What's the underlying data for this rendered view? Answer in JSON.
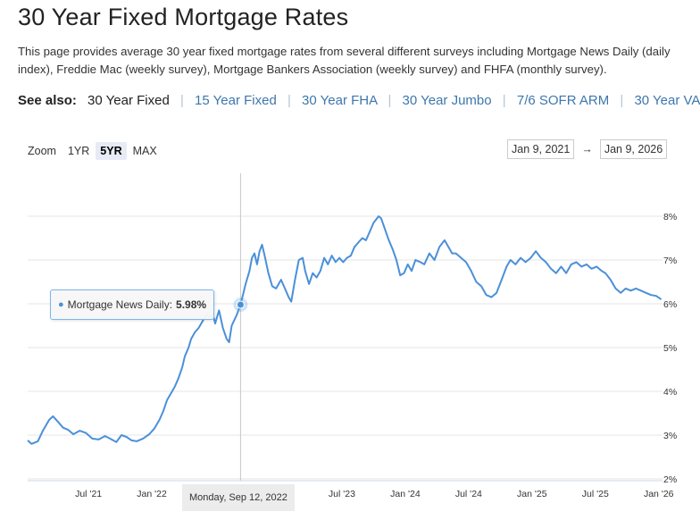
{
  "page": {
    "title": "30 Year Fixed Mortgage Rates",
    "intro": "This page provides average 30 year fixed mortgage rates from several different surveys including Mortgage News Daily (daily index), Freddie Mac (weekly survey), Mortgage Bankers Association (weekly survey) and FHFA (monthly survey)."
  },
  "see_also": {
    "label": "See also:",
    "items": [
      {
        "text": "30 Year Fixed",
        "current": true
      },
      {
        "text": "15 Year Fixed",
        "current": false
      },
      {
        "text": "30 Year FHA",
        "current": false
      },
      {
        "text": "30 Year Jumbo",
        "current": false
      },
      {
        "text": "7/6 SOFR ARM",
        "current": false
      },
      {
        "text": "30 Year VA",
        "current": false
      }
    ]
  },
  "zoom": {
    "label": "Zoom",
    "buttons": [
      {
        "text": "1YR",
        "active": false
      },
      {
        "text": "5YR",
        "active": true
      },
      {
        "text": "MAX",
        "active": false
      }
    ]
  },
  "range": {
    "from": "Jan 9, 2021",
    "arrow": "→",
    "to": "Jan 9, 2026"
  },
  "tooltip": {
    "series_label": "Mortgage News Daily:",
    "value": "5.98%",
    "date_label": "Monday, Sep 12, 2022"
  },
  "chart_data": {
    "type": "line",
    "series": [
      {
        "name": "Mortgage News Daily",
        "color": "#4a90d9",
        "points": [
          [
            2021.02,
            2.88
          ],
          [
            2021.05,
            2.8
          ],
          [
            2021.1,
            2.86
          ],
          [
            2021.14,
            3.1
          ],
          [
            2021.19,
            3.35
          ],
          [
            2021.22,
            3.43
          ],
          [
            2021.26,
            3.3
          ],
          [
            2021.3,
            3.17
          ],
          [
            2021.34,
            3.12
          ],
          [
            2021.38,
            3.02
          ],
          [
            2021.43,
            3.1
          ],
          [
            2021.48,
            3.05
          ],
          [
            2021.53,
            2.92
          ],
          [
            2021.58,
            2.9
          ],
          [
            2021.63,
            2.98
          ],
          [
            2021.67,
            2.92
          ],
          [
            2021.72,
            2.84
          ],
          [
            2021.76,
            3.0
          ],
          [
            2021.8,
            2.96
          ],
          [
            2021.84,
            2.88
          ],
          [
            2021.88,
            2.86
          ],
          [
            2021.93,
            2.92
          ],
          [
            2021.98,
            3.02
          ],
          [
            2022.02,
            3.15
          ],
          [
            2022.06,
            3.35
          ],
          [
            2022.09,
            3.55
          ],
          [
            2022.12,
            3.8
          ],
          [
            2022.15,
            3.95
          ],
          [
            2022.18,
            4.1
          ],
          [
            2022.21,
            4.3
          ],
          [
            2022.24,
            4.55
          ],
          [
            2022.26,
            4.8
          ],
          [
            2022.29,
            5.0
          ],
          [
            2022.31,
            5.2
          ],
          [
            2022.34,
            5.35
          ],
          [
            2022.37,
            5.45
          ],
          [
            2022.4,
            5.6
          ],
          [
            2022.43,
            5.75
          ],
          [
            2022.46,
            5.7
          ],
          [
            2022.48,
            5.78
          ],
          [
            2022.5,
            5.55
          ],
          [
            2022.53,
            5.85
          ],
          [
            2022.56,
            5.45
          ],
          [
            2022.59,
            5.2
          ],
          [
            2022.61,
            5.12
          ],
          [
            2022.63,
            5.5
          ],
          [
            2022.67,
            5.75
          ],
          [
            2022.7,
            5.98
          ],
          [
            2022.74,
            6.45
          ],
          [
            2022.77,
            6.75
          ],
          [
            2022.79,
            7.05
          ],
          [
            2022.81,
            7.15
          ],
          [
            2022.83,
            6.9
          ],
          [
            2022.85,
            7.2
          ],
          [
            2022.87,
            7.35
          ],
          [
            2022.89,
            7.1
          ],
          [
            2022.92,
            6.7
          ],
          [
            2022.95,
            6.4
          ],
          [
            2022.98,
            6.35
          ],
          [
            2023.02,
            6.55
          ],
          [
            2023.05,
            6.35
          ],
          [
            2023.08,
            6.15
          ],
          [
            2023.1,
            6.05
          ],
          [
            2023.13,
            6.55
          ],
          [
            2023.16,
            7.0
          ],
          [
            2023.19,
            7.05
          ],
          [
            2023.21,
            6.75
          ],
          [
            2023.24,
            6.45
          ],
          [
            2023.27,
            6.7
          ],
          [
            2023.3,
            6.6
          ],
          [
            2023.33,
            6.75
          ],
          [
            2023.36,
            7.05
          ],
          [
            2023.39,
            6.9
          ],
          [
            2023.42,
            7.1
          ],
          [
            2023.45,
            6.95
          ],
          [
            2023.48,
            7.05
          ],
          [
            2023.51,
            6.95
          ],
          [
            2023.54,
            7.05
          ],
          [
            2023.57,
            7.1
          ],
          [
            2023.6,
            7.3
          ],
          [
            2023.63,
            7.4
          ],
          [
            2023.66,
            7.5
          ],
          [
            2023.69,
            7.45
          ],
          [
            2023.72,
            7.65
          ],
          [
            2023.75,
            7.85
          ],
          [
            2023.79,
            8.0
          ],
          [
            2023.81,
            7.95
          ],
          [
            2023.84,
            7.7
          ],
          [
            2023.87,
            7.45
          ],
          [
            2023.9,
            7.25
          ],
          [
            2023.93,
            7.0
          ],
          [
            2023.96,
            6.65
          ],
          [
            2023.99,
            6.7
          ],
          [
            2024.02,
            6.9
          ],
          [
            2024.05,
            6.75
          ],
          [
            2024.08,
            7.0
          ],
          [
            2024.12,
            6.95
          ],
          [
            2024.15,
            6.9
          ],
          [
            2024.19,
            7.15
          ],
          [
            2024.23,
            7.0
          ],
          [
            2024.27,
            7.3
          ],
          [
            2024.31,
            7.45
          ],
          [
            2024.34,
            7.3
          ],
          [
            2024.37,
            7.15
          ],
          [
            2024.4,
            7.15
          ],
          [
            2024.44,
            7.05
          ],
          [
            2024.48,
            6.95
          ],
          [
            2024.52,
            6.75
          ],
          [
            2024.56,
            6.5
          ],
          [
            2024.6,
            6.4
          ],
          [
            2024.64,
            6.2
          ],
          [
            2024.68,
            6.15
          ],
          [
            2024.72,
            6.25
          ],
          [
            2024.76,
            6.55
          ],
          [
            2024.8,
            6.85
          ],
          [
            2024.83,
            7.0
          ],
          [
            2024.87,
            6.9
          ],
          [
            2024.91,
            7.05
          ],
          [
            2024.95,
            6.95
          ],
          [
            2024.99,
            7.05
          ],
          [
            2025.03,
            7.2
          ],
          [
            2025.07,
            7.05
          ],
          [
            2025.11,
            6.95
          ],
          [
            2025.15,
            6.8
          ],
          [
            2025.19,
            6.7
          ],
          [
            2025.23,
            6.85
          ],
          [
            2025.27,
            6.7
          ],
          [
            2025.31,
            6.9
          ],
          [
            2025.35,
            6.95
          ],
          [
            2025.39,
            6.85
          ],
          [
            2025.43,
            6.9
          ],
          [
            2025.47,
            6.8
          ],
          [
            2025.51,
            6.85
          ],
          [
            2025.55,
            6.75
          ],
          [
            2025.58,
            6.7
          ],
          [
            2025.62,
            6.55
          ],
          [
            2025.66,
            6.35
          ],
          [
            2025.7,
            6.25
          ],
          [
            2025.74,
            6.35
          ],
          [
            2025.78,
            6.3
          ],
          [
            2025.82,
            6.35
          ],
          [
            2025.86,
            6.3
          ],
          [
            2025.9,
            6.25
          ],
          [
            2025.94,
            6.2
          ],
          [
            2025.98,
            6.18
          ],
          [
            2026.02,
            6.1
          ]
        ]
      }
    ],
    "highlight": {
      "x": 2022.7,
      "y": 5.98
    },
    "x_ticks": [
      {
        "value": 2021.5,
        "label": "Jul '21"
      },
      {
        "value": 2022.0,
        "label": "Jan '22"
      },
      {
        "value": 2023.5,
        "label": "Jul '23"
      },
      {
        "value": 2024.0,
        "label": "Jan '24"
      },
      {
        "value": 2024.5,
        "label": "Jul '24"
      },
      {
        "value": 2025.0,
        "label": "Jan '25"
      },
      {
        "value": 2025.5,
        "label": "Jul '25"
      },
      {
        "value": 2026.0,
        "label": "Jan '26"
      }
    ],
    "y_ticks": [
      {
        "value": 2,
        "label": "2%"
      },
      {
        "value": 3,
        "label": "3%"
      },
      {
        "value": 4,
        "label": "4%"
      },
      {
        "value": 5,
        "label": "5%"
      },
      {
        "value": 6,
        "label": "6%"
      },
      {
        "value": 7,
        "label": "7%"
      },
      {
        "value": 8,
        "label": "8%"
      }
    ],
    "xlim": [
      2021.02,
      2026.03
    ],
    "ylim": [
      2,
      8
    ],
    "grid": true
  }
}
